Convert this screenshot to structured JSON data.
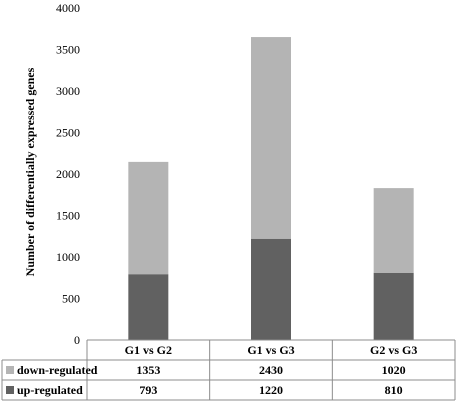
{
  "chart_data": {
    "type": "bar",
    "stacked": true,
    "categories": [
      "G1 vs G2",
      "G1 vs G3",
      "G2 vs G3"
    ],
    "series": [
      {
        "name": "up-regulated",
        "values": [
          793,
          1220,
          810
        ],
        "color": "#616161"
      },
      {
        "name": "down-regulated",
        "values": [
          1353,
          2430,
          1020
        ],
        "color": "#b4b4b4"
      }
    ],
    "ylabel": "Number of differentially expressed genes",
    "ylim": [
      0,
      4000
    ],
    "yticks": [
      0,
      500,
      1000,
      1500,
      2000,
      2500,
      3000,
      3500,
      4000
    ],
    "grid": false,
    "legend": "data table below chart",
    "data_table": true
  }
}
